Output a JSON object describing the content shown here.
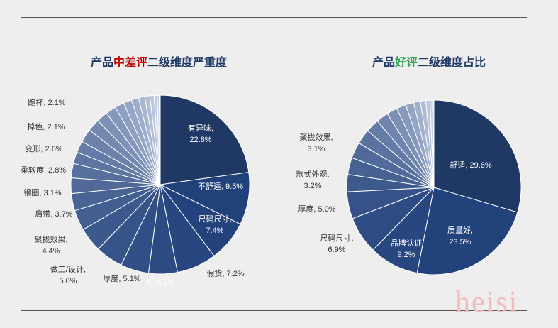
{
  "colors": {
    "title": "#1f3864",
    "highlight_negative": "#c00000",
    "highlight_positive": "#2ea44f",
    "slice_main": "#1f3864",
    "slice_light": "#d8dfee",
    "label": "#333333",
    "inner_label": "#ffffff"
  },
  "charts": [
    {
      "title_prefix": "产品",
      "title_highlight": "中差评",
      "title_suffix": "二级维度严重度"
    },
    {
      "title_prefix": "产品",
      "title_highlight": "好评",
      "title_suffix": "二级维度占比"
    }
  ],
  "chart_data": [
    {
      "type": "pie",
      "title": "产品中差评二级维度严重度",
      "slices": [
        {
          "label": "有异味",
          "value": 22.8,
          "text": [
            "有异味,",
            "22.8%"
          ]
        },
        {
          "label": "不舒适",
          "value": 9.5,
          "text": [
            "不舒适, 9.5%"
          ]
        },
        {
          "label": "尺码尺寸",
          "value": 7.4,
          "text": [
            "尺码尺寸,",
            "7.4%"
          ]
        },
        {
          "label": "假货",
          "value": 7.2,
          "text": [
            "假货, 7.2%"
          ]
        },
        {
          "label": "",
          "value": 5.2,
          "text": [
            "",
            "%, 5.2%"
          ]
        },
        {
          "label": "厚度",
          "value": 5.1,
          "text": [
            "厚度, 5.1%"
          ]
        },
        {
          "label": "做工/设计",
          "value": 5.0,
          "text": [
            "做工/设计,",
            "5.0%"
          ]
        },
        {
          "label": "聚拢效果",
          "value": 4.4,
          "text": [
            "聚拢效果,",
            "4.4%"
          ]
        },
        {
          "label": "肩带",
          "value": 3.7,
          "text": [
            "肩带, 3.7%"
          ]
        },
        {
          "label": "钢圈",
          "value": 3.1,
          "text": [
            "钢圈, 3.1%"
          ]
        },
        {
          "label": "柔软度",
          "value": 2.8,
          "text": [
            "柔软度, 2.8%"
          ]
        },
        {
          "label": "变形",
          "value": 2.6,
          "text": [
            "变形, 2.6%"
          ]
        },
        {
          "label": "掉色",
          "value": 2.1,
          "text": [
            "掉色, 2.1%"
          ]
        },
        {
          "label": "跑杯",
          "value": 2.1,
          "text": [
            "跑杯, 2.1%"
          ]
        }
      ],
      "unlabeled_remainder_slices": 13
    },
    {
      "type": "pie",
      "title": "产品好评二级维度占比",
      "slices": [
        {
          "label": "舒适",
          "value": 29.6,
          "text": [
            "舒适, 29.6%"
          ]
        },
        {
          "label": "质量好",
          "value": 23.5,
          "text": [
            "质量好,",
            "23.5%"
          ]
        },
        {
          "label": "品牌认证",
          "value": 9.2,
          "text": [
            "品牌认证",
            "9.2%"
          ]
        },
        {
          "label": "尺码尺寸",
          "value": 6.9,
          "text": [
            "尺码尺寸,",
            "6.9%"
          ]
        },
        {
          "label": "厚度",
          "value": 5.0,
          "text": [
            "厚度, 5.0%"
          ]
        },
        {
          "label": "款式外观",
          "value": 3.2,
          "text": [
            "款式外观,",
            "3.2%"
          ]
        },
        {
          "label": "聚拢效果",
          "value": 3.1,
          "text": [
            "聚拢效果,",
            "3.1%"
          ]
        }
      ],
      "unlabeled_remainder_slices": 12
    }
  ],
  "watermark": "heisi"
}
